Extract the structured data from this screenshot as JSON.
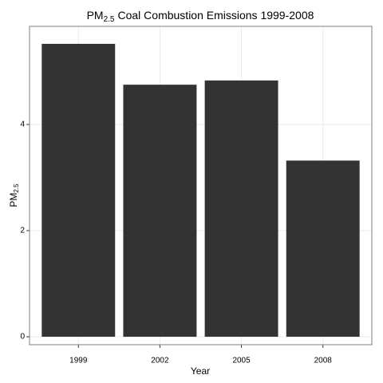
{
  "chart_data": {
    "type": "bar",
    "title": [
      "PM",
      "2.5",
      "Coal Combustion Emissions 1999-2008"
    ],
    "xlabel": "Year",
    "ylabel": [
      "PM",
      "2.5"
    ],
    "categories": [
      "1999",
      "2002",
      "2005",
      "2008"
    ],
    "values": [
      5.52,
      4.75,
      4.83,
      3.32
    ],
    "color": "#333333",
    "ylim": [
      -0.15,
      5.85
    ],
    "yticks": [
      0,
      2,
      4
    ],
    "grid": true
  }
}
